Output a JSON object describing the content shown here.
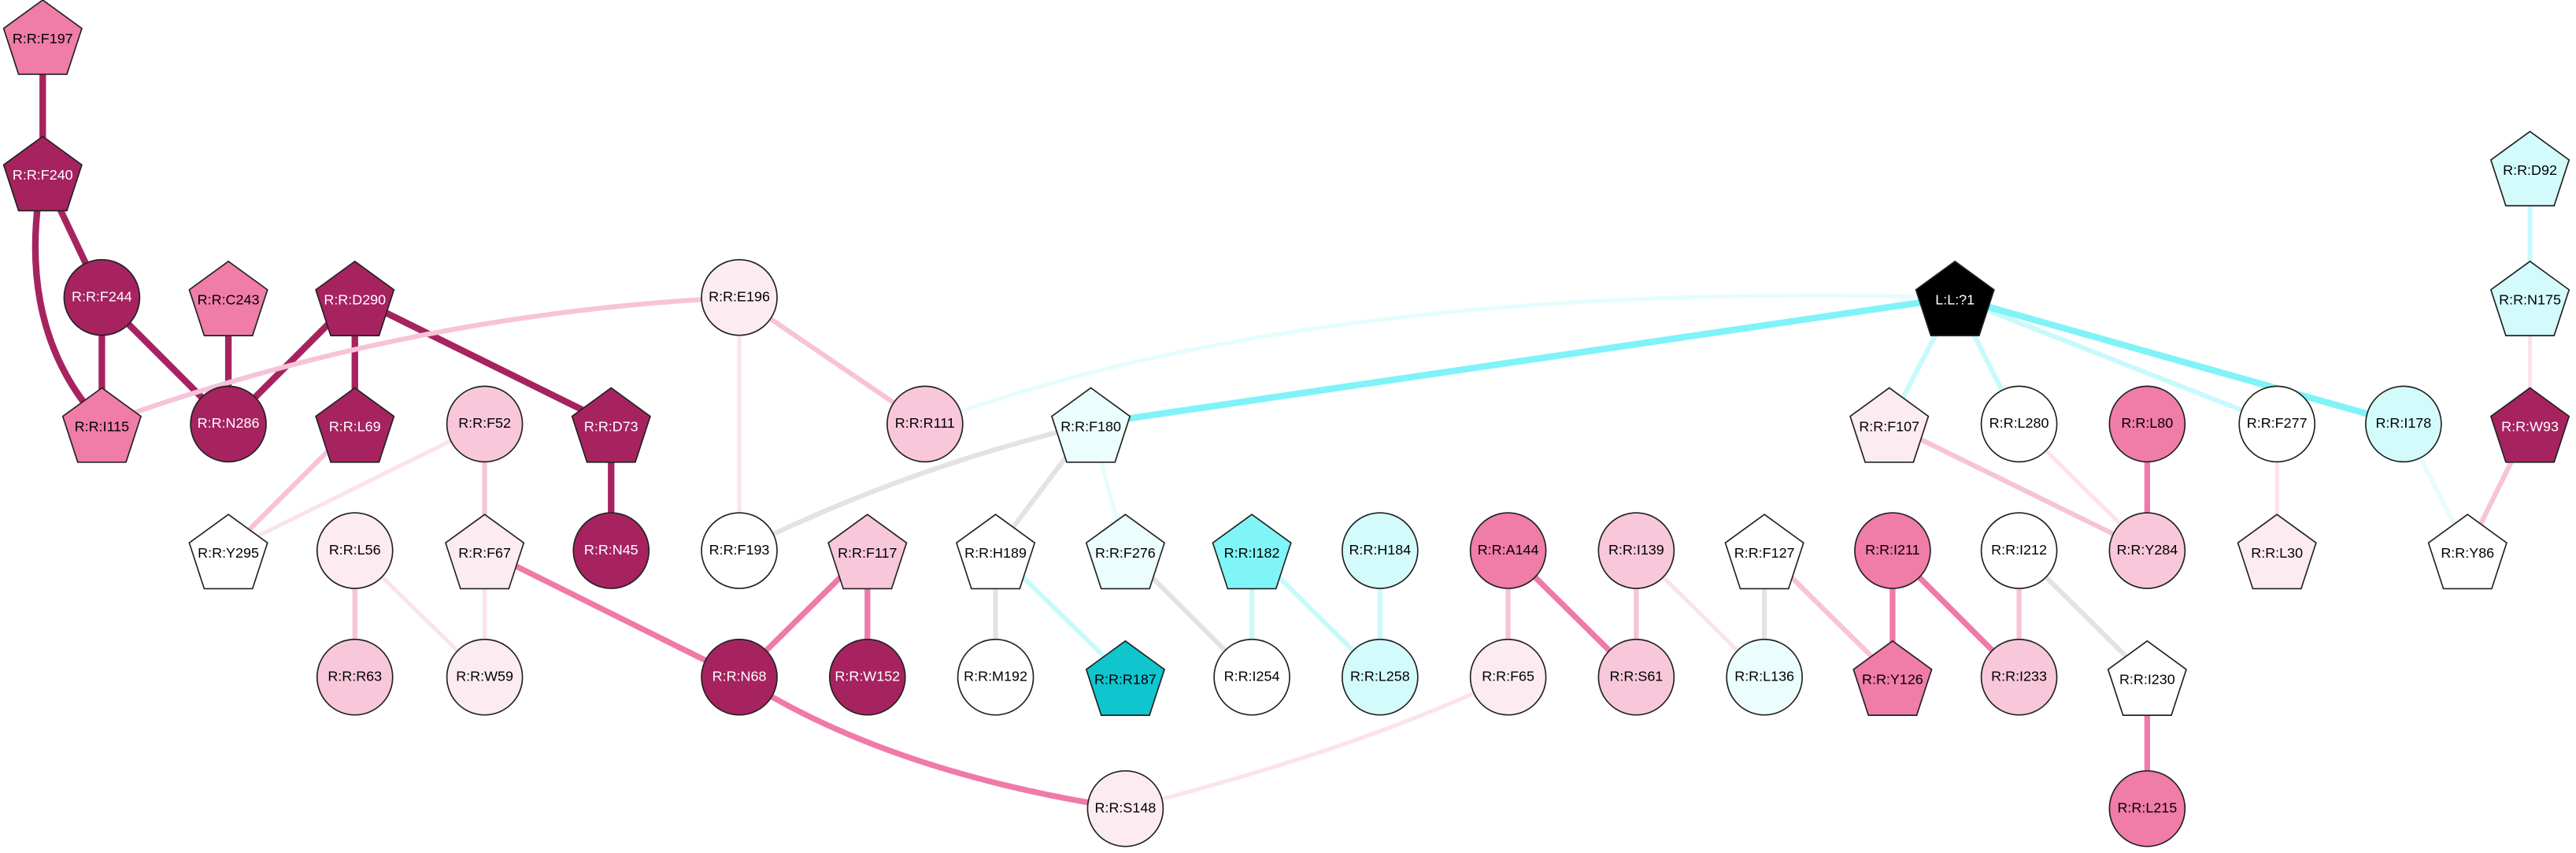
{
  "nodes": [
    {
      "label": "R:R:F197"
    },
    {
      "label": "R:R:F240"
    },
    {
      "label": "R:R:F244"
    },
    {
      "label": "R:R:C243"
    },
    {
      "label": "R:R:D290"
    },
    {
      "label": "R:R:E196"
    },
    {
      "label": "L:L:?1"
    },
    {
      "label": "R:R:D92"
    },
    {
      "label": "R:R:N175"
    },
    {
      "label": "R:R:I115"
    },
    {
      "label": "R:R:N286"
    },
    {
      "label": "R:R:L69"
    },
    {
      "label": "R:R:F52"
    },
    {
      "label": "R:R:D73"
    },
    {
      "label": "R:R:R111"
    },
    {
      "label": "R:R:F180"
    },
    {
      "label": "R:R:F107"
    },
    {
      "label": "R:R:L280"
    },
    {
      "label": "R:R:L80"
    },
    {
      "label": "R:R:F277"
    },
    {
      "label": "R:R:I178"
    },
    {
      "label": "R:R:W93"
    },
    {
      "label": "R:R:Y295"
    },
    {
      "label": "R:R:L56"
    },
    {
      "label": "R:R:F67"
    },
    {
      "label": "R:R:N45"
    },
    {
      "label": "R:R:F193"
    },
    {
      "label": "R:R:F117"
    },
    {
      "label": "R:R:H189"
    },
    {
      "label": "R:R:F276"
    },
    {
      "label": "R:R:I182"
    },
    {
      "label": "R:R:H184"
    },
    {
      "label": "R:R:A144"
    },
    {
      "label": "R:R:I139"
    },
    {
      "label": "R:R:F127"
    },
    {
      "label": "R:R:I211"
    },
    {
      "label": "R:R:I212"
    },
    {
      "label": "R:R:Y284"
    },
    {
      "label": "R:R:L30"
    },
    {
      "label": "R:R:Y86"
    },
    {
      "label": "R:R:R63"
    },
    {
      "label": "R:R:W59"
    },
    {
      "label": "R:R:N68"
    },
    {
      "label": "R:R:W152"
    },
    {
      "label": "R:R:M192"
    },
    {
      "label": "R:R:R187"
    },
    {
      "label": "R:R:I254"
    },
    {
      "label": "R:R:L258"
    },
    {
      "label": "R:R:F65"
    },
    {
      "label": "R:R:S61"
    },
    {
      "label": "R:R:L136"
    },
    {
      "label": "R:R:Y126"
    },
    {
      "label": "R:R:I233"
    },
    {
      "label": "R:R:I230"
    },
    {
      "label": "R:R:S148"
    },
    {
      "label": "R:R:L215"
    }
  ]
}
